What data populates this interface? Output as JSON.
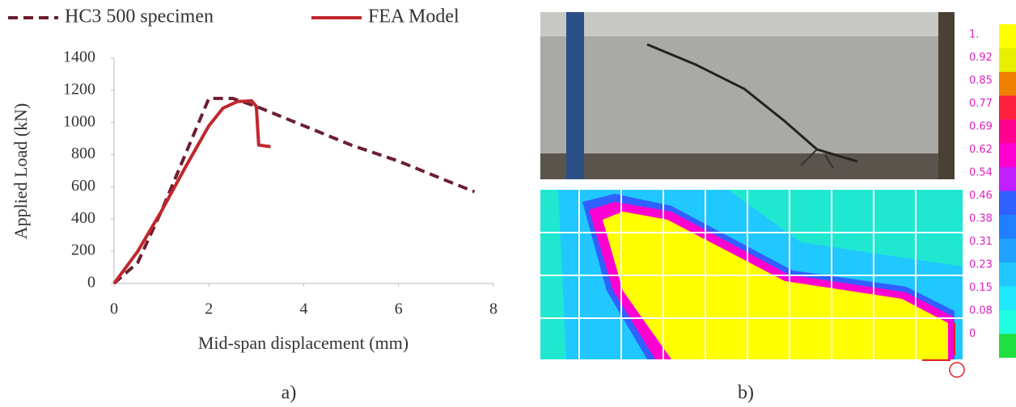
{
  "chart_data": {
    "type": "line",
    "xlabel": "Mid-span  displacement (mm)",
    "ylabel": "Applied Load (kN)",
    "xlim": [
      0,
      8
    ],
    "xticks": [
      0,
      2,
      4,
      6,
      8
    ],
    "ylim": [
      0,
      1400
    ],
    "yticks": [
      0,
      200,
      400,
      600,
      800,
      1000,
      1200,
      1400
    ],
    "grid": false,
    "legend": "top",
    "series": [
      {
        "name": "HC3 500 specimen",
        "color": "#6b1f30",
        "dash": true,
        "x": [
          0,
          0.5,
          1,
          1.5,
          2,
          2.5,
          3,
          4,
          5,
          6,
          7,
          7.6
        ],
        "values": [
          0,
          130,
          450,
          800,
          1150,
          1150,
          1100,
          980,
          860,
          760,
          640,
          570
        ]
      },
      {
        "name": "FEA Model",
        "color": "#c0272d",
        "dash": false,
        "x": [
          0,
          0.5,
          1,
          1.5,
          2,
          2.3,
          2.6,
          2.9,
          3.0,
          3.05,
          3.3
        ],
        "values": [
          0,
          200,
          450,
          720,
          980,
          1090,
          1130,
          1135,
          1100,
          860,
          850
        ]
      }
    ]
  },
  "panels": [
    "a)",
    "b)"
  ],
  "colorbar": {
    "ticks": [
      {
        "value": 1,
        "label": "1."
      },
      0.92,
      0.85,
      0.77,
      0.69,
      0.62,
      0.54,
      0.46,
      0.38,
      0.31,
      0.23,
      0.15,
      0.08,
      0
    ],
    "colors": [
      "#ffff00",
      "#e8f000",
      "#f08000",
      "#ff2040",
      "#ff0090",
      "#ff00d0",
      "#c020ff",
      "#3060ff",
      "#2080ff",
      "#20a0ff",
      "#20c8ff",
      "#20e8ff",
      "#20ffe0",
      "#20e040"
    ]
  }
}
